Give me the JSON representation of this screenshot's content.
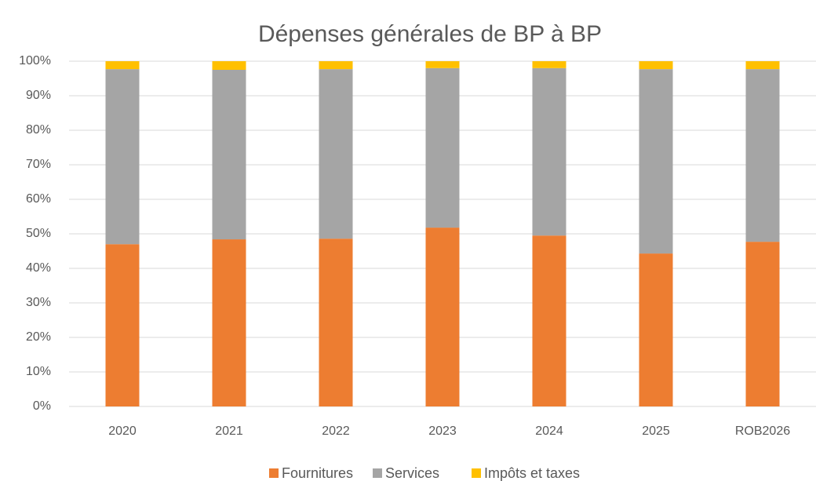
{
  "chart_data": {
    "type": "stacked_bar",
    "title": "Dépenses générales de BP à BP",
    "categories": [
      "2020",
      "2021",
      "2022",
      "2023",
      "2024",
      "2025",
      "ROB2026"
    ],
    "series": [
      {
        "name": "Fournitures",
        "color": "#ed7d31",
        "values": [
          47.0,
          48.4,
          48.6,
          51.8,
          49.5,
          44.3,
          47.7
        ]
      },
      {
        "name": "Services",
        "color": "#a5a5a5",
        "values": [
          50.7,
          49.1,
          49.1,
          46.2,
          48.5,
          53.4,
          50.0
        ]
      },
      {
        "name": "Impôts et taxes",
        "color": "#ffc000",
        "values": [
          2.3,
          2.5,
          2.3,
          2.0,
          2.0,
          2.3,
          2.3
        ]
      }
    ],
    "ylim": [
      0,
      100
    ],
    "yticks": [
      {
        "value": 0,
        "label": "0%"
      },
      {
        "value": 10,
        "label": "10%"
      },
      {
        "value": 20,
        "label": "20%"
      },
      {
        "value": 30,
        "label": "30%"
      },
      {
        "value": 40,
        "label": "40%"
      },
      {
        "value": 50,
        "label": "50%"
      },
      {
        "value": 60,
        "label": "60%"
      },
      {
        "value": 70,
        "label": "70%"
      },
      {
        "value": 80,
        "label": "80%"
      },
      {
        "value": 90,
        "label": "90%"
      },
      {
        "value": 100,
        "label": "100%"
      }
    ],
    "grid": true,
    "legend": "bottom"
  }
}
